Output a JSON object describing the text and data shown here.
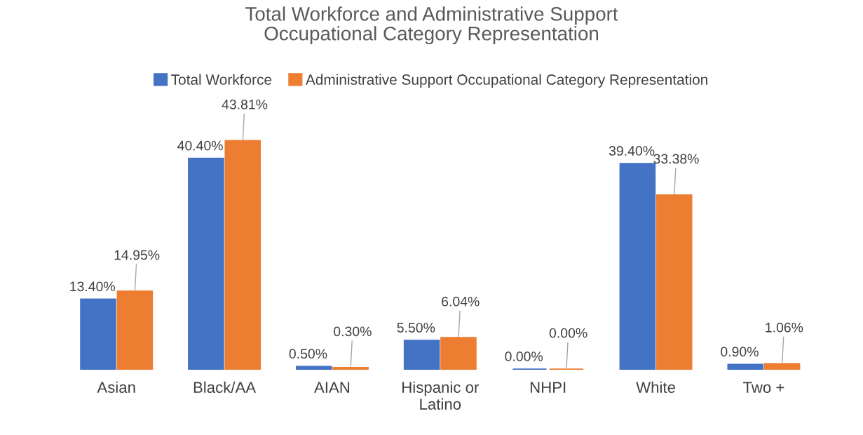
{
  "chart_data": {
    "type": "bar",
    "title": "Total Workforce and Administrative Support\nOccupational Category Representation",
    "categories": [
      "Asian",
      "Black/AA",
      "AIAN",
      "Hispanic or\nLatino",
      "NHPI",
      "White",
      "Two +"
    ],
    "series": [
      {
        "name": "Total Workforce",
        "color": "#4472c4",
        "values": [
          13.4,
          40.4,
          0.5,
          5.5,
          0.0,
          39.4,
          0.9
        ],
        "value_labels": [
          "13.40%",
          "40.40%",
          "0.50%",
          "5.50%",
          "0.00%",
          "39.40%",
          "0.90%"
        ]
      },
      {
        "name": "Administrative Support Occupational Category Representation",
        "color": "#ed7d31",
        "values": [
          14.95,
          43.81,
          0.3,
          6.04,
          0.0,
          33.38,
          1.06
        ],
        "value_labels": [
          "14.95%",
          "43.81%",
          "0.30%",
          "6.04%",
          "0.00%",
          "33.38%",
          "1.06%"
        ]
      }
    ],
    "grid": false,
    "legend": "top"
  }
}
